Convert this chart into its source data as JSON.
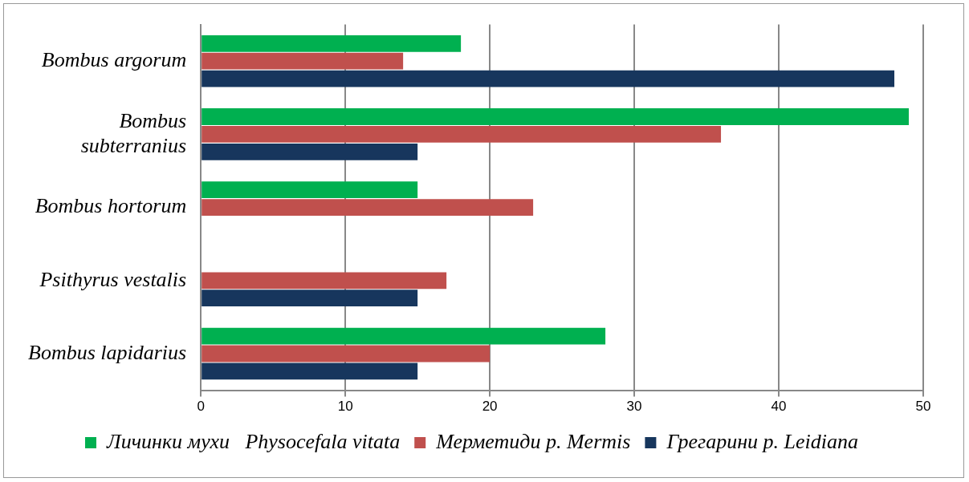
{
  "chart_data": {
    "type": "bar",
    "orientation": "horizontal",
    "categories": [
      "Bombus argorum",
      "Bombus subterranius",
      "Bombus hortorum",
      "Psithyrus vestalis",
      "Bombus lapidarius"
    ],
    "series": [
      {
        "name": "Личинки мухи   Physocefala vitata",
        "color": "#00b050",
        "values": [
          18,
          49,
          15,
          0,
          28
        ]
      },
      {
        "name": "Мерметиди р. Mermis",
        "color": "#c0504d",
        "values": [
          14,
          36,
          23,
          17,
          20
        ]
      },
      {
        "name": "Грегарини р. Leidiana",
        "color": "#17365d",
        "values": [
          48,
          15,
          0,
          15,
          15
        ]
      }
    ],
    "xlim": [
      0,
      50
    ],
    "xticks": [
      0,
      10,
      20,
      30,
      40,
      50
    ],
    "grid": "x",
    "legend": "bottom"
  }
}
